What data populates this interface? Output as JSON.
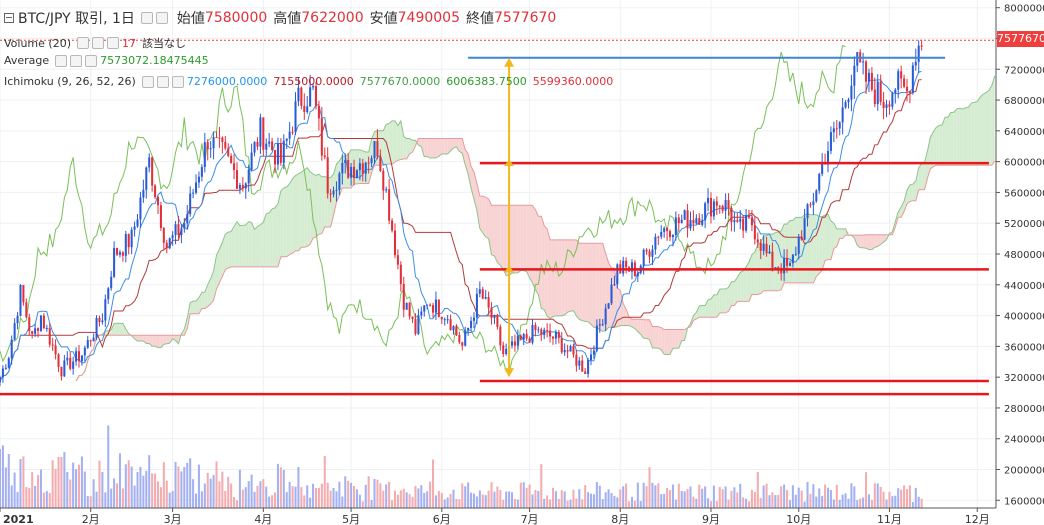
{
  "header": {
    "symbol": "BTC/JPY 取引, 1日",
    "open_label": "始値",
    "open": "7580000",
    "high_label": "高値",
    "high": "7622000",
    "low_label": "安値",
    "low": "7490005",
    "close_label": "終値",
    "close": "7577670"
  },
  "indicators": {
    "volume_label": "Volume (20)",
    "volume_value": "17",
    "volume_note": "該当なし",
    "average_label": "Average",
    "average_value": "7573072.18475445",
    "ichimoku_label": "Ichimoku (9, 26, 52, 26)",
    "ichimoku_values": [
      "7276000.0000",
      "7155000.0000",
      "7577670.0000",
      "6006383.7500",
      "5599360.0000"
    ]
  },
  "colors": {
    "up": "#2a5bd7",
    "down": "#e2303a",
    "tenkan": "#3d8ee6",
    "kijun": "#b23a3a",
    "chikou": "#7cbf5a",
    "kumo_bull": "#d6ecd2",
    "kumo_bear": "#f8d3d3",
    "hline": "#e8161d",
    "resistance": "#3b86cf",
    "arrow": "#f2b81e"
  },
  "chart_data": {
    "type": "candlestick",
    "y_axis_ticks": [
      8000000,
      7600000,
      7200000,
      6800000,
      6400000,
      6000000,
      5600000,
      5200000,
      4800000,
      4400000,
      4000000,
      3600000,
      3200000,
      2800000,
      2400000,
      2000000,
      1600000
    ],
    "x_axis_ticks": [
      "2021",
      "2月",
      "3月",
      "4月",
      "5月",
      "6月",
      "7月",
      "8月",
      "9月",
      "10月",
      "11月",
      "12月"
    ],
    "ylim": [
      1500000,
      8100000
    ],
    "current_price": "7577670",
    "price_path": [
      [
        "2021-01-01",
        3200000
      ],
      [
        "2021-01-04",
        3500000
      ],
      [
        "2021-01-08",
        4300000
      ],
      [
        "2021-01-12",
        3700000
      ],
      [
        "2021-01-15",
        4000000
      ],
      [
        "2021-01-22",
        3300000
      ],
      [
        "2021-01-29",
        3500000
      ],
      [
        "2021-02-05",
        4000000
      ],
      [
        "2021-02-09",
        4800000
      ],
      [
        "2021-02-15",
        5000000
      ],
      [
        "2021-02-21",
        6000000
      ],
      [
        "2021-02-27",
        4900000
      ],
      [
        "2021-03-05",
        5200000
      ],
      [
        "2021-03-13",
        6300000
      ],
      [
        "2021-03-18",
        6100000
      ],
      [
        "2021-03-25",
        5700000
      ],
      [
        "2021-03-31",
        6400000
      ],
      [
        "2021-04-07",
        6000000
      ],
      [
        "2021-04-13",
        6800000
      ],
      [
        "2021-04-18",
        6900000
      ],
      [
        "2021-04-23",
        5700000
      ],
      [
        "2021-04-29",
        5900000
      ],
      [
        "2021-05-05",
        6000000
      ],
      [
        "2021-05-10",
        6200000
      ],
      [
        "2021-05-13",
        5600000
      ],
      [
        "2021-05-19",
        4200000
      ],
      [
        "2021-05-23",
        3800000
      ],
      [
        "2021-05-27",
        4200000
      ],
      [
        "2021-06-03",
        4000000
      ],
      [
        "2021-06-08",
        3600000
      ],
      [
        "2021-06-14",
        4300000
      ],
      [
        "2021-06-19",
        3900000
      ],
      [
        "2021-06-22",
        3500000
      ],
      [
        "2021-06-26",
        3600000
      ],
      [
        "2021-07-03",
        3800000
      ],
      [
        "2021-07-10",
        3700000
      ],
      [
        "2021-07-20",
        3300000
      ],
      [
        "2021-07-26",
        4000000
      ],
      [
        "2021-07-31",
        4600000
      ],
      [
        "2021-08-07",
        4600000
      ],
      [
        "2021-08-14",
        5100000
      ],
      [
        "2021-08-20",
        5200000
      ],
      [
        "2021-08-27",
        5300000
      ],
      [
        "2021-09-03",
        5500000
      ],
      [
        "2021-09-07",
        5400000
      ],
      [
        "2021-09-10",
        5100000
      ],
      [
        "2021-09-15",
        5200000
      ],
      [
        "2021-09-21",
        4700000
      ],
      [
        "2021-09-28",
        4600000
      ],
      [
        "2021-10-01",
        5000000
      ],
      [
        "2021-10-05",
        5400000
      ],
      [
        "2021-10-10",
        6100000
      ],
      [
        "2021-10-15",
        6500000
      ],
      [
        "2021-10-20",
        7300000
      ],
      [
        "2021-10-25",
        7000000
      ],
      [
        "2021-10-30",
        6800000
      ],
      [
        "2021-11-03",
        7000000
      ],
      [
        "2021-11-07",
        6900000
      ],
      [
        "2021-11-10",
        7450000
      ],
      [
        "2021-11-12",
        7580000
      ]
    ],
    "horizontal_lines": [
      {
        "price": 2980000,
        "from": "2021-01-01",
        "to": "2021-12-05",
        "color": "red"
      },
      {
        "price": 3150000,
        "from": "2021-06-14",
        "to": "2021-12-05",
        "color": "red"
      },
      {
        "price": 4600000,
        "from": "2021-06-14",
        "to": "2021-12-05",
        "color": "red"
      },
      {
        "price": 5980000,
        "from": "2021-06-14",
        "to": "2021-12-05",
        "color": "red"
      },
      {
        "price": 7350000,
        "from": "2021-06-10",
        "to": "2021-11-20",
        "color": "blue"
      }
    ],
    "arrow": {
      "date": "2021-06-24",
      "from": 3200000,
      "to": 7350000,
      "ticks": [
        4600000,
        5980000
      ]
    }
  }
}
